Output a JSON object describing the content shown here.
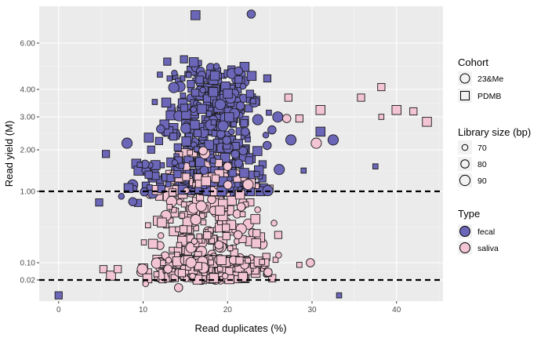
{
  "chart_data": {
    "type": "scatter",
    "xlabel": "Read duplicates (%)",
    "ylabel": "Read yield (M)",
    "x_ticks": [
      0,
      10,
      20,
      30,
      40
    ],
    "y_ticks": [
      {
        "label": "0.02",
        "value": 0.02
      },
      {
        "label": "0.10",
        "value": 0.1
      },
      {
        "label": "1.00",
        "value": 1.0
      },
      {
        "label": "2.00",
        "value": 2.0
      },
      {
        "label": "3.00",
        "value": 3.0
      },
      {
        "label": "4.00",
        "value": 4.0
      },
      {
        "label": "6.00",
        "value": 6.0
      }
    ],
    "xlim": [
      -2.3,
      45.5
    ],
    "ylim": [
      -0.09,
      7.65
    ],
    "y_scale": "pseudo-log (compressed below 1)",
    "reference_lines": [
      1.0,
      0.02
    ],
    "grid": true,
    "legend_position": "right",
    "legend": {
      "cohort": {
        "title": "Cohort",
        "items": [
          {
            "label": "23&Me",
            "shape": "circle"
          },
          {
            "label": "PDMB",
            "shape": "square"
          }
        ]
      },
      "library_size": {
        "title": "Library size (bp)",
        "items": [
          {
            "label": "70"
          },
          {
            "label": "80"
          },
          {
            "label": "90"
          }
        ]
      },
      "type": {
        "title": "Type",
        "items": [
          {
            "label": "fecal",
            "color": "#6b66b8"
          },
          {
            "label": "saliva",
            "color": "#f2c4d4"
          }
        ]
      }
    },
    "colors": {
      "fecal": "#6b66b8",
      "saliva": "#f2c4d4",
      "panel": "#ebebeb",
      "grid": "#ffffff",
      "outline": "#1a1a1a"
    },
    "notable_points": [
      {
        "x": 0,
        "y": -0.06,
        "type": "fecal",
        "cohort": "PDMB"
      },
      {
        "x": 33.2,
        "y": -0.06,
        "type": "fecal",
        "cohort": "PDMB"
      },
      {
        "x": 16.2,
        "y": 7.25,
        "type": "fecal",
        "cohort": "PDMB"
      },
      {
        "x": 22.8,
        "y": 7.3,
        "type": "fecal",
        "cohort": "23&Me"
      },
      {
        "x": 5.6,
        "y": 1.9,
        "type": "fecal",
        "cohort": "PDMB"
      },
      {
        "x": 4.8,
        "y": 0.86,
        "type": "fecal",
        "cohort": "PDMB"
      },
      {
        "x": 8.1,
        "y": 2.2,
        "type": "fecal",
        "cohort": "23&Me"
      },
      {
        "x": 31.0,
        "y": 2.55,
        "type": "fecal",
        "cohort": "PDMB"
      },
      {
        "x": 32.5,
        "y": 2.3,
        "type": "fecal",
        "cohort": "23&Me"
      },
      {
        "x": 37.5,
        "y": 1.6,
        "type": "fecal",
        "cohort": "PDMB"
      },
      {
        "x": 29.0,
        "y": 1.5,
        "type": "fecal",
        "cohort": "PDMB"
      },
      {
        "x": 27.5,
        "y": 2.3,
        "type": "fecal",
        "cohort": "23&Me"
      },
      {
        "x": 31.0,
        "y": 3.25,
        "type": "saliva",
        "cohort": "PDMB"
      },
      {
        "x": 35.8,
        "y": 3.7,
        "type": "saliva",
        "cohort": "PDMB"
      },
      {
        "x": 38.2,
        "y": 4.1,
        "type": "saliva",
        "cohort": "PDMB"
      },
      {
        "x": 38.2,
        "y": 3.0,
        "type": "saliva",
        "cohort": "PDMB"
      },
      {
        "x": 40.0,
        "y": 3.25,
        "type": "saliva",
        "cohort": "PDMB"
      },
      {
        "x": 42.0,
        "y": 3.2,
        "type": "saliva",
        "cohort": "PDMB"
      },
      {
        "x": 43.6,
        "y": 2.85,
        "type": "saliva",
        "cohort": "PDMB"
      },
      {
        "x": 27.0,
        "y": 2.95,
        "type": "saliva",
        "cohort": "23&Me"
      },
      {
        "x": 28.5,
        "y": 2.95,
        "type": "saliva",
        "cohort": "PDMB"
      },
      {
        "x": 30.5,
        "y": 2.2,
        "type": "saliva",
        "cohort": "23&Me"
      },
      {
        "x": 27.2,
        "y": 3.7,
        "type": "saliva",
        "cohort": "PDMB"
      },
      {
        "x": 29.8,
        "y": 0.1,
        "type": "saliva",
        "cohort": "23&Me"
      },
      {
        "x": 28.5,
        "y": 0.09,
        "type": "saliva",
        "cohort": "PDMB"
      },
      {
        "x": 5.3,
        "y": 0.07,
        "type": "saliva",
        "cohort": "PDMB"
      },
      {
        "x": 6.2,
        "y": 0.04,
        "type": "saliva",
        "cohort": "PDMB"
      },
      {
        "x": 7.0,
        "y": 0.07,
        "type": "saliva",
        "cohort": "PDMB"
      },
      {
        "x": 10.3,
        "y": 0.0,
        "type": "saliva",
        "cohort": "23&Me"
      },
      {
        "x": 14.2,
        "y": -0.02,
        "type": "saliva",
        "cohort": "23&Me"
      },
      {
        "x": 25.5,
        "y": 0.6,
        "type": "saliva",
        "cohort": "23&Me"
      },
      {
        "x": 26.0,
        "y": 0.45,
        "type": "saliva",
        "cohort": "PDMB"
      }
    ],
    "clusters": [
      {
        "type": "fecal",
        "x_range": [
          9.5,
          27
        ],
        "y_range": [
          1.0,
          5.6
        ],
        "n": 520
      },
      {
        "type": "fecal",
        "x_range": [
          6.5,
          14
        ],
        "y_range": [
          0.85,
          1.7
        ],
        "n": 30
      },
      {
        "type": "saliva",
        "x_range": [
          8,
          27
        ],
        "y_range": [
          0.02,
          1.45
        ],
        "n": 560
      },
      {
        "type": "saliva",
        "x_range": [
          12,
          22
        ],
        "y_range": [
          1.0,
          2.0
        ],
        "n": 40
      }
    ]
  }
}
